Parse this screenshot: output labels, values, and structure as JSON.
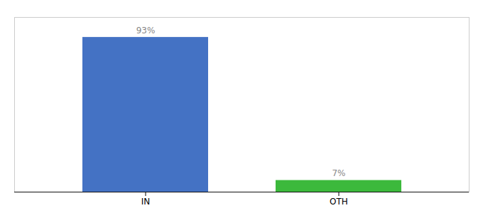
{
  "chart_data": {
    "type": "bar",
    "categories": [
      "IN",
      "OTH"
    ],
    "values": [
      93,
      7
    ],
    "value_labels": [
      "93%",
      "7%"
    ],
    "colors": [
      "#4472c4",
      "#3cb93c"
    ],
    "ylim": [
      0,
      105
    ],
    "data_labels": true,
    "tick_labels": "x"
  }
}
